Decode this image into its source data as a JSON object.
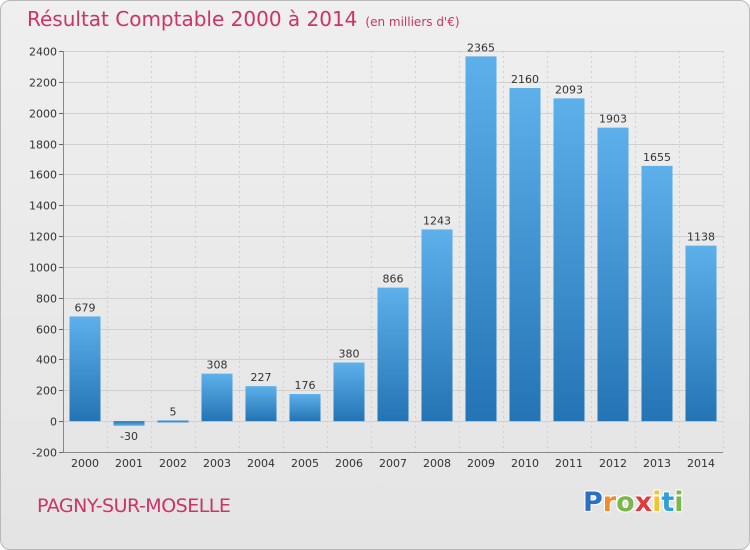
{
  "title": "Résultat Comptable 2000 à 2014",
  "title_unit": "(en milliers d'€)",
  "commune": "PAGNY-SUR-MOSELLE",
  "logo": {
    "letters": [
      "P",
      "r",
      "o",
      "x",
      "i",
      "t",
      "i"
    ],
    "colors": [
      "#2d6fc0",
      "#f28c28",
      "#7ab648",
      "#e03a3a",
      "#f2c230",
      "#2d9fd8",
      "#7ab648"
    ]
  },
  "colors": {
    "title": "#cc3366",
    "bar_light": "#5aaee8",
    "bar_dark": "#2677b8",
    "grid": "#d0d0d0",
    "axis_text": "#333333"
  },
  "chart_data": {
    "type": "bar",
    "categories": [
      "2000",
      "2001",
      "2002",
      "2003",
      "2004",
      "2005",
      "2006",
      "2007",
      "2008",
      "2009",
      "2010",
      "2011",
      "2012",
      "2013",
      "2014"
    ],
    "values": [
      679,
      -30,
      5,
      308,
      227,
      176,
      380,
      866,
      1243,
      2365,
      2160,
      2093,
      1903,
      1655,
      1138
    ],
    "value_labels": [
      "679",
      "-30",
      "5",
      "308",
      "227",
      "176",
      "380",
      "866",
      "1243",
      "2365",
      "2160",
      "2093",
      "1903",
      "1655",
      "1138"
    ],
    "y_ticks": [
      -200,
      0,
      200,
      400,
      600,
      800,
      1000,
      1200,
      1400,
      1600,
      1800,
      2000,
      2200,
      2400
    ],
    "y_tick_labels": [
      "-200",
      "0",
      "200",
      "400",
      "600",
      "800",
      "1000",
      "1200",
      "1400",
      "1600",
      "1800",
      "2000",
      "2200",
      "2400"
    ],
    "ylim": [
      -200,
      2400
    ],
    "grid": true
  }
}
